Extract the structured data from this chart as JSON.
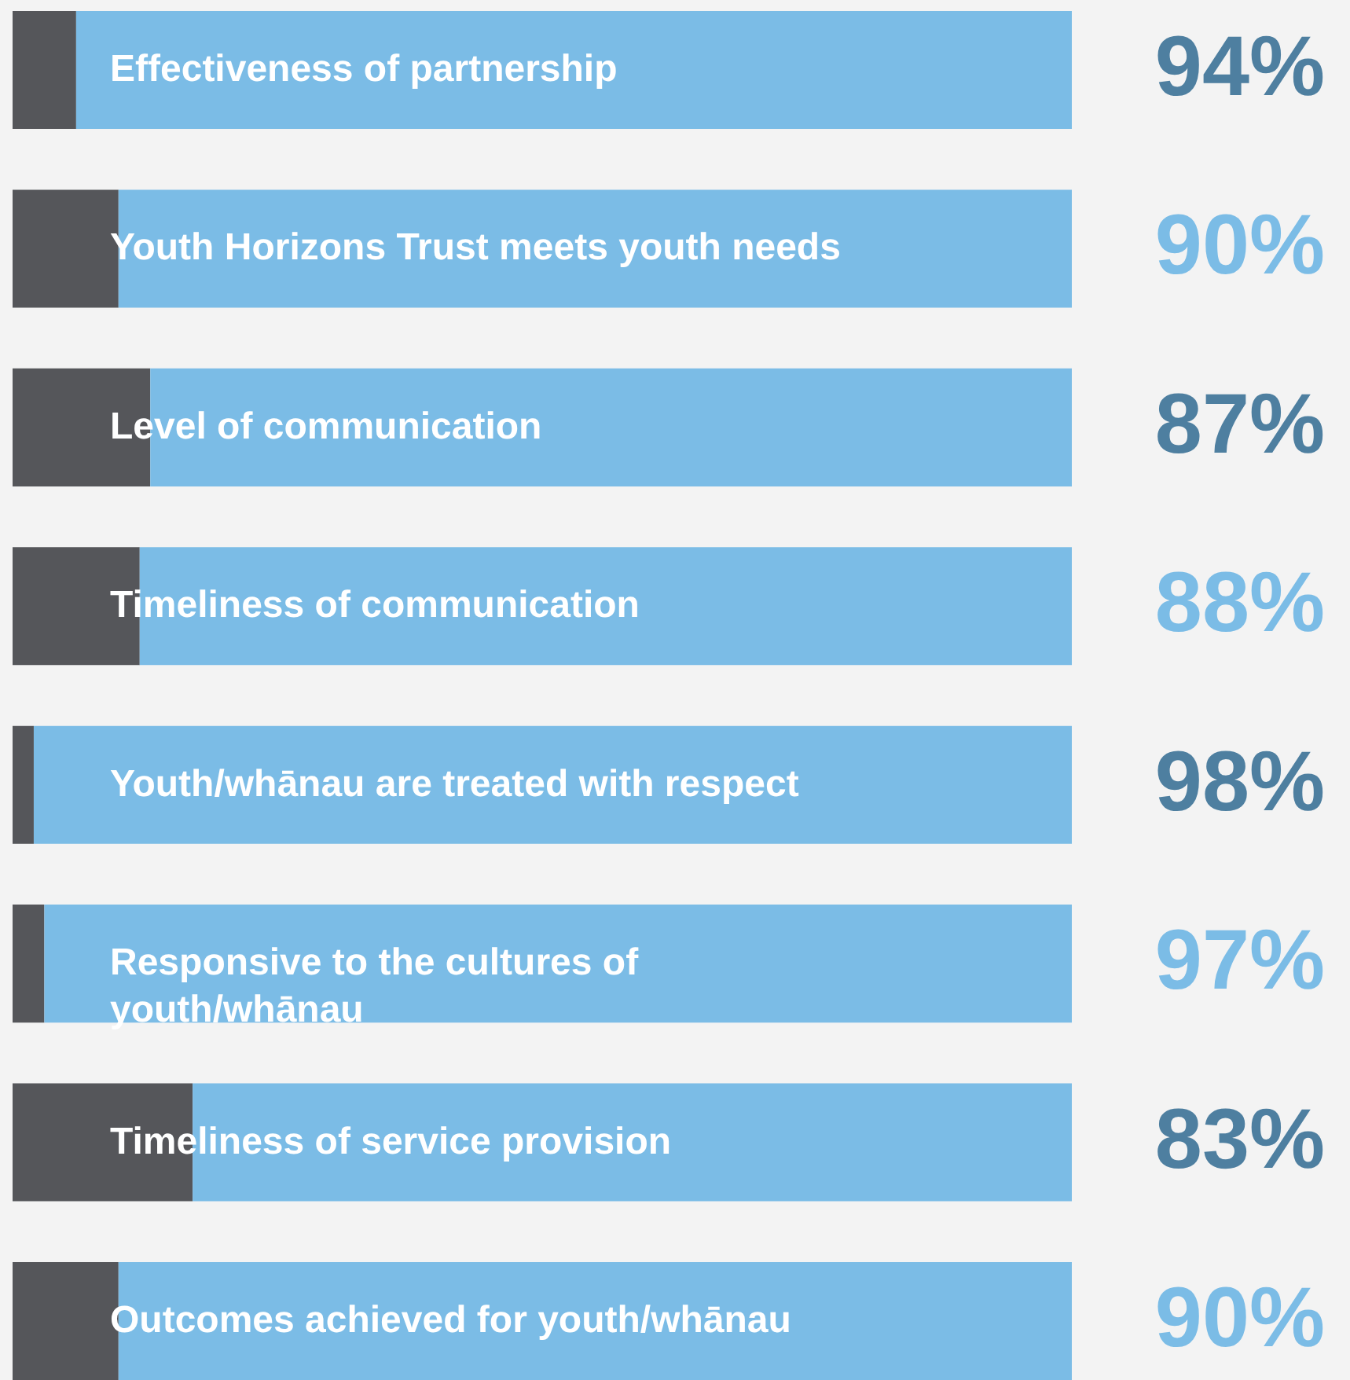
{
  "chart_data": {
    "type": "bar",
    "orientation": "horizontal",
    "stacked": true,
    "xlim": [
      0,
      100
    ],
    "tick_labels": false,
    "categories": [
      "Effectiveness of partnership",
      "Youth Horizons Trust meets youth needs",
      "Level of communication",
      "Timeliness of communication",
      "Youth/whānau are treated with respect",
      "Responsive to the cultures of youth/whānau",
      "Timeliness of service provision",
      "Outcomes achieved for youth/whānau"
    ],
    "series": [
      {
        "color": "#55565a",
        "values": [
          6,
          10,
          13,
          12,
          2,
          3,
          17,
          10
        ]
      },
      {
        "color": "#7bbce6",
        "values": [
          94,
          90,
          87,
          88,
          98,
          97,
          83,
          90
        ],
        "value_labels": [
          "94%",
          "90%",
          "87%",
          "88%",
          "98%",
          "97%",
          "83%",
          "90%"
        ]
      }
    ]
  }
}
